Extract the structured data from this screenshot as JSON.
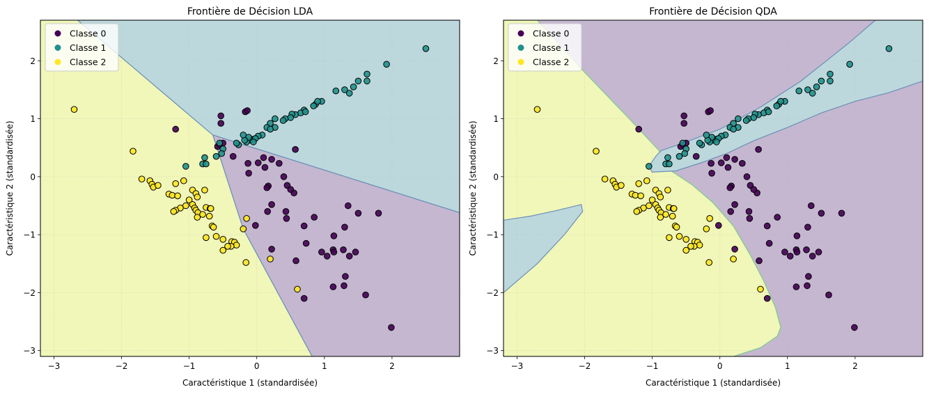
{
  "chart_data": [
    {
      "type": "scatter",
      "title": "Frontière de Décision LDA",
      "xlabel": "Caractéristique 1 (standardisée)",
      "ylabel": "Caractéristique 2 (standardisée)",
      "xlim": [
        -3.2,
        3.0
      ],
      "ylim": [
        -3.1,
        2.7
      ],
      "xticks": [
        -3,
        -2,
        -1,
        0,
        1,
        2
      ],
      "yticks": [
        -3,
        -2,
        -1,
        0,
        1,
        2
      ],
      "xtick_labels": [
        "−3",
        "−2",
        "−1",
        "0",
        "1",
        "2"
      ],
      "ytick_labels": [
        "−3",
        "−2",
        "−1",
        "0",
        "1",
        "2"
      ],
      "grid": true,
      "legend_position": "top-left",
      "legend": [
        "Classe 0",
        "Classe 1",
        "Classe 2"
      ],
      "model": "LDA",
      "regions": [
        {
          "class": "Classe 2",
          "polygon": [
            [
              -3.2,
              2.7
            ],
            [
              -2.65,
              2.7
            ],
            [
              -0.65,
              0.72
            ],
            [
              -0.2,
              -0.9
            ],
            [
              0.82,
              -3.1
            ],
            [
              -3.2,
              -3.1
            ]
          ]
        },
        {
          "class": "Classe 1",
          "polygon": [
            [
              -2.65,
              2.7
            ],
            [
              3.0,
              2.7
            ],
            [
              3.0,
              -0.62
            ],
            [
              -0.65,
              0.72
            ]
          ]
        },
        {
          "class": "Classe 0",
          "polygon": [
            [
              -0.65,
              0.72
            ],
            [
              3.0,
              -0.62
            ],
            [
              3.0,
              -3.1
            ],
            [
              0.82,
              -3.1
            ],
            [
              -0.2,
              -0.9
            ]
          ]
        }
      ]
    },
    {
      "type": "scatter",
      "title": "Frontière de Décision QDA",
      "xlabel": "Caractéristique 1 (standardisée)",
      "ylabel": "Caractéristique 2 (standardisée)",
      "xlim": [
        -3.2,
        3.0
      ],
      "ylim": [
        -3.1,
        2.7
      ],
      "xticks": [
        -3,
        -2,
        -1,
        0,
        1,
        2
      ],
      "yticks": [
        -3,
        -2,
        -1,
        0,
        1,
        2
      ],
      "xtick_labels": [
        "−3",
        "−2",
        "−1",
        "0",
        "1",
        "2"
      ],
      "ytick_labels": [
        "−3",
        "−2",
        "−1",
        "0",
        "1",
        "2"
      ],
      "grid": true,
      "legend_position": "top-left",
      "legend": [
        "Classe 0",
        "Classe 1",
        "Classe 2"
      ],
      "model": "QDA",
      "regions": [
        {
          "class": "Classe 0",
          "polygon": [
            [
              -3.2,
              2.7
            ],
            [
              3.0,
              2.7
            ],
            [
              3.0,
              -3.1
            ],
            [
              -3.2,
              -3.1
            ]
          ]
        },
        {
          "class": "Classe 2",
          "polygon": [
            [
              -3.2,
              2.7
            ],
            [
              -2.7,
              2.7
            ],
            [
              -2.0,
              1.8
            ],
            [
              -1.3,
              0.95
            ],
            [
              -0.9,
              0.45
            ],
            [
              -0.85,
              0.3
            ],
            [
              -1.0,
              0.1
            ],
            [
              -0.72,
              0.1
            ],
            [
              -0.4,
              -0.15
            ],
            [
              -0.1,
              -0.45
            ],
            [
              0.2,
              -0.85
            ],
            [
              0.45,
              -1.35
            ],
            [
              0.65,
              -1.8
            ],
            [
              0.82,
              -2.25
            ],
            [
              0.9,
              -2.6
            ],
            [
              0.85,
              -2.75
            ],
            [
              0.6,
              -2.95
            ],
            [
              0.2,
              -3.1
            ],
            [
              -3.2,
              -3.1
            ]
          ]
        },
        {
          "class": "Classe 1",
          "polygon": [
            [
              -0.87,
              0.45
            ],
            [
              -0.5,
              0.6
            ],
            [
              0.0,
              0.82
            ],
            [
              0.6,
              1.2
            ],
            [
              1.2,
              1.65
            ],
            [
              1.9,
              2.3
            ],
            [
              2.3,
              2.7
            ],
            [
              3.0,
              2.7
            ],
            [
              3.0,
              1.65
            ],
            [
              2.5,
              1.45
            ],
            [
              2.0,
              1.3
            ],
            [
              1.5,
              1.1
            ],
            [
              1.0,
              0.85
            ],
            [
              0.5,
              0.62
            ],
            [
              0.1,
              0.4
            ],
            [
              -0.25,
              0.25
            ],
            [
              -0.65,
              0.1
            ],
            [
              -1.0,
              0.08
            ],
            [
              -1.05,
              0.18
            ],
            [
              -0.95,
              0.35
            ]
          ]
        },
        {
          "class": "Classe 1",
          "polygon": [
            [
              -3.2,
              -0.75
            ],
            [
              -2.8,
              -0.68
            ],
            [
              -2.4,
              -0.58
            ],
            [
              -2.05,
              -0.48
            ],
            [
              -2.03,
              -0.6
            ],
            [
              -2.3,
              -1.0
            ],
            [
              -2.7,
              -1.5
            ],
            [
              -3.2,
              -2.0
            ]
          ]
        }
      ]
    }
  ],
  "points": {
    "class0": [
      [
        -1.2,
        0.82
      ],
      [
        -0.53,
        1.05
      ],
      [
        -0.53,
        0.92
      ],
      [
        -0.17,
        1.12
      ],
      [
        -0.14,
        1.14
      ],
      [
        -0.55,
        0.55
      ],
      [
        -0.5,
        0.58
      ],
      [
        -0.58,
        0.52
      ],
      [
        -0.35,
        0.35
      ],
      [
        -0.13,
        0.23
      ],
      [
        0.1,
        0.33
      ],
      [
        -0.12,
        0.06
      ],
      [
        0.22,
        0.3
      ],
      [
        0.02,
        0.24
      ],
      [
        0.12,
        0.16
      ],
      [
        0.57,
        0.47
      ],
      [
        0.33,
        0.23
      ],
      [
        0.4,
        0.0
      ],
      [
        0.45,
        -0.15
      ],
      [
        0.17,
        -0.16
      ],
      [
        0.15,
        -0.19
      ],
      [
        0.55,
        -0.28
      ],
      [
        0.5,
        -0.22
      ],
      [
        -0.02,
        -0.84
      ],
      [
        0.22,
        -0.48
      ],
      [
        0.16,
        -0.6
      ],
      [
        0.43,
        -0.6
      ],
      [
        0.44,
        -0.72
      ],
      [
        0.7,
        -0.85
      ],
      [
        0.73,
        -1.15
      ],
      [
        0.58,
        -1.45
      ],
      [
        0.85,
        -0.7
      ],
      [
        1.13,
        -1.26
      ],
      [
        1.14,
        -1.3
      ],
      [
        0.96,
        -1.3
      ],
      [
        1.04,
        -1.37
      ],
      [
        1.28,
        -1.26
      ],
      [
        1.46,
        -1.3
      ],
      [
        1.37,
        -1.37
      ],
      [
        1.3,
        -0.87
      ],
      [
        1.35,
        -0.5
      ],
      [
        1.5,
        -0.63
      ],
      [
        1.8,
        -0.63
      ],
      [
        1.14,
        -1.02
      ],
      [
        1.31,
        -1.72
      ],
      [
        1.13,
        -1.9
      ],
      [
        1.29,
        -1.88
      ],
      [
        1.61,
        -2.04
      ],
      [
        0.7,
        -2.1
      ],
      [
        1.99,
        -2.6
      ],
      [
        0.22,
        -1.25
      ]
    ],
    "class1": [
      [
        2.5,
        2.21
      ],
      [
        1.92,
        1.94
      ],
      [
        1.63,
        1.77
      ],
      [
        1.63,
        1.65
      ],
      [
        1.5,
        1.65
      ],
      [
        1.43,
        1.55
      ],
      [
        1.3,
        1.5
      ],
      [
        1.37,
        1.44
      ],
      [
        1.17,
        1.48
      ],
      [
        0.96,
        1.3
      ],
      [
        0.87,
        1.25
      ],
      [
        0.9,
        1.3
      ],
      [
        0.84,
        1.22
      ],
      [
        0.7,
        1.15
      ],
      [
        0.65,
        1.1
      ],
      [
        0.72,
        1.12
      ],
      [
        0.57,
        1.07
      ],
      [
        0.52,
        1.08
      ],
      [
        0.5,
        1.02
      ],
      [
        0.42,
        1.0
      ],
      [
        0.39,
        0.97
      ],
      [
        0.27,
        1.0
      ],
      [
        0.2,
        0.92
      ],
      [
        0.27,
        0.85
      ],
      [
        0.15,
        0.85
      ],
      [
        0.2,
        0.82
      ],
      [
        0.08,
        0.72
      ],
      [
        0.02,
        0.7
      ],
      [
        -0.04,
        0.65
      ],
      [
        -0.1,
        0.63
      ],
      [
        -0.15,
        0.6
      ],
      [
        -0.12,
        0.68
      ],
      [
        -0.18,
        0.63
      ],
      [
        -0.02,
        0.66
      ],
      [
        -0.27,
        0.55
      ],
      [
        -0.3,
        0.58
      ],
      [
        -0.05,
        0.6
      ],
      [
        -0.2,
        0.72
      ],
      [
        -0.5,
        0.48
      ],
      [
        -0.52,
        0.4
      ],
      [
        -0.6,
        0.35
      ],
      [
        -0.77,
        0.33
      ],
      [
        -0.8,
        0.22
      ],
      [
        -0.75,
        0.22
      ],
      [
        -1.05,
        0.18
      ],
      [
        -0.55,
        0.58
      ]
    ],
    "class2": [
      [
        -2.7,
        1.16
      ],
      [
        -1.83,
        0.44
      ],
      [
        -1.7,
        -0.04
      ],
      [
        -1.58,
        -0.07
      ],
      [
        -1.55,
        -0.13
      ],
      [
        -1.53,
        -0.18
      ],
      [
        -1.46,
        -0.15
      ],
      [
        -1.3,
        -0.3
      ],
      [
        -1.2,
        -0.12
      ],
      [
        -1.08,
        -0.07
      ],
      [
        -1.25,
        -0.32
      ],
      [
        -1.17,
        -0.33
      ],
      [
        -0.95,
        -0.23
      ],
      [
        -0.9,
        -0.29
      ],
      [
        -0.88,
        -0.35
      ],
      [
        -0.77,
        -0.23
      ],
      [
        -1.0,
        -0.4
      ],
      [
        -0.95,
        -0.48
      ],
      [
        -1.05,
        -0.5
      ],
      [
        -0.92,
        -0.54
      ],
      [
        -0.9,
        -0.58
      ],
      [
        -0.87,
        -0.62
      ],
      [
        -1.13,
        -0.54
      ],
      [
        -1.2,
        -0.58
      ],
      [
        -1.23,
        -0.6
      ],
      [
        -0.75,
        -0.53
      ],
      [
        -0.69,
        -0.55
      ],
      [
        -0.68,
        -0.55
      ],
      [
        -0.8,
        -0.65
      ],
      [
        -0.7,
        -0.68
      ],
      [
        -0.88,
        -0.7
      ],
      [
        -0.66,
        -0.85
      ],
      [
        -0.64,
        -0.87
      ],
      [
        -0.6,
        -1.03
      ],
      [
        -0.75,
        -1.05
      ],
      [
        -0.5,
        -1.08
      ],
      [
        -0.37,
        -1.12
      ],
      [
        -0.33,
        -1.13
      ],
      [
        -0.3,
        -1.18
      ],
      [
        -0.38,
        -1.2
      ],
      [
        -0.43,
        -1.2
      ],
      [
        -0.5,
        -1.27
      ],
      [
        -0.2,
        -0.9
      ],
      [
        -0.15,
        -0.72
      ],
      [
        -0.16,
        -1.48
      ],
      [
        0.2,
        -1.42
      ],
      [
        0.6,
        -1.94
      ]
    ]
  },
  "colors": {
    "class0_point": "#440154",
    "class1_point": "#21918c",
    "class2_point": "#fde725",
    "class0_region": "#c5b7d0",
    "class1_region": "#bdd8dc",
    "class2_region": "#f1f6b9",
    "boundary_class1": "#6a8fb6",
    "boundary_class2": "#7cc98a"
  }
}
